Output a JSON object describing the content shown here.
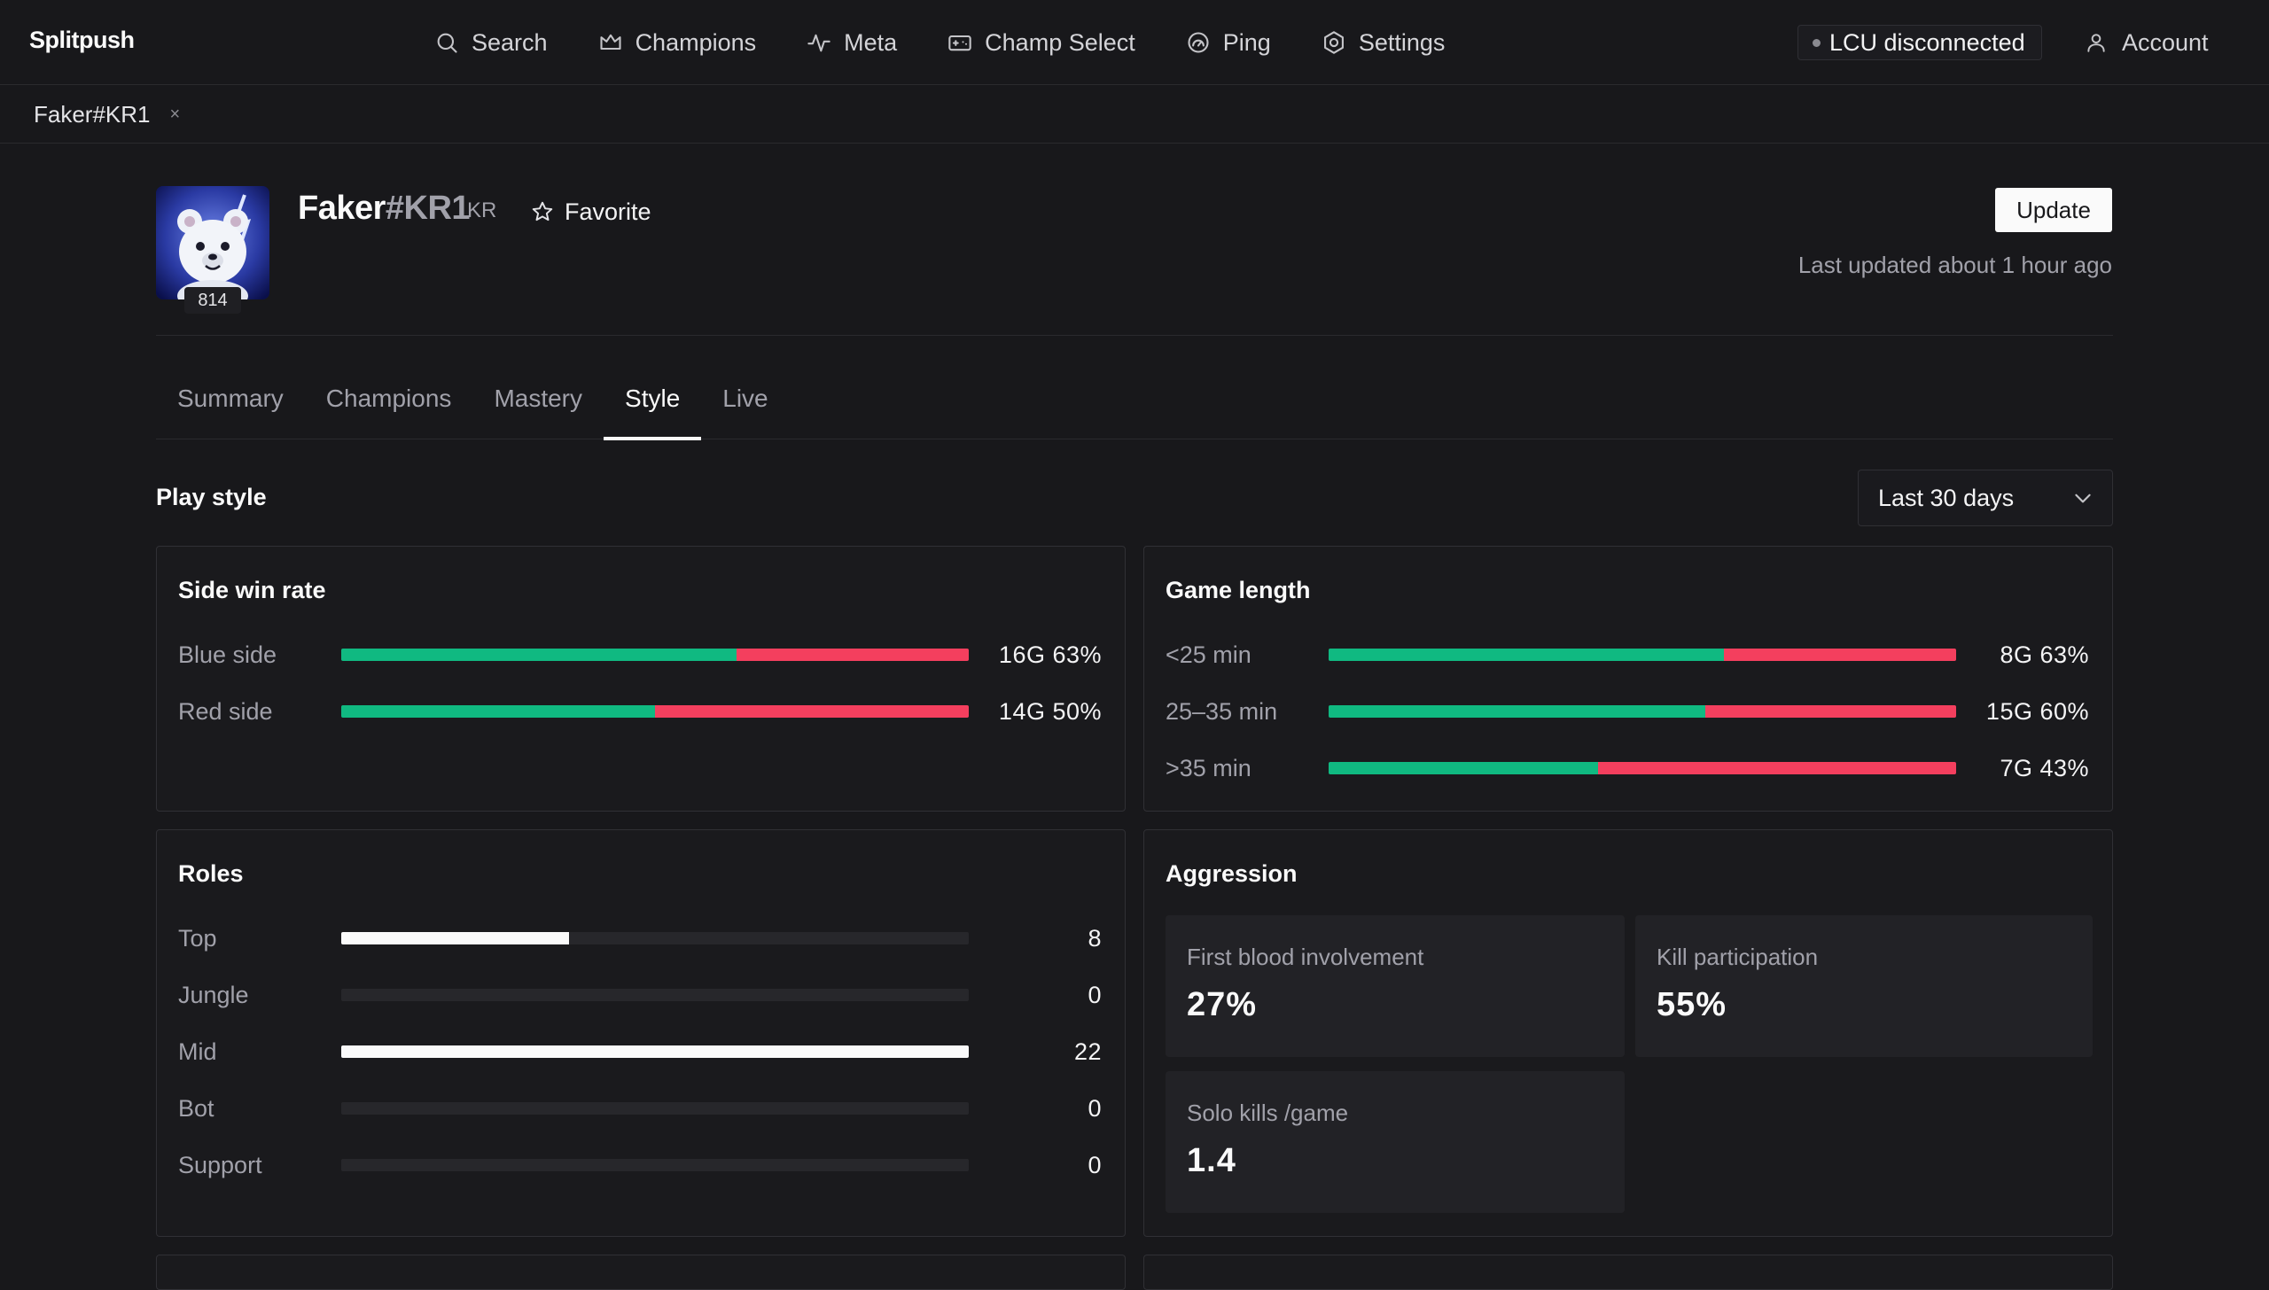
{
  "app": {
    "brand": "Splitpush"
  },
  "nav": {
    "items": [
      {
        "label": "Search",
        "icon": "search-icon"
      },
      {
        "label": "Champions",
        "icon": "crown-icon"
      },
      {
        "label": "Meta",
        "icon": "activity-icon"
      },
      {
        "label": "Champ Select",
        "icon": "gamepad-icon"
      },
      {
        "label": "Ping",
        "icon": "gauge-icon"
      },
      {
        "label": "Settings",
        "icon": "gear-icon"
      }
    ],
    "lcu_status": "LCU disconnected",
    "account_label": "Account"
  },
  "open_tab": {
    "label": "Faker#KR1",
    "close": "×"
  },
  "profile": {
    "name": "Faker",
    "tag": "#KR1",
    "region": "KR",
    "level": "814",
    "favorite_label": "Favorite",
    "update_label": "Update",
    "last_updated": "Last updated about 1 hour ago"
  },
  "profile_tabs": [
    {
      "label": "Summary",
      "active": false
    },
    {
      "label": "Champions",
      "active": false
    },
    {
      "label": "Mastery",
      "active": false
    },
    {
      "label": "Style",
      "active": true
    },
    {
      "label": "Live",
      "active": false
    }
  ],
  "section": {
    "title": "Play style",
    "range": "Last 30 days"
  },
  "side_win_rate": {
    "title": "Side win rate",
    "rows": [
      {
        "label": "Blue side",
        "value": "16G 63%",
        "winrate": 0.63
      },
      {
        "label": "Red side",
        "value": "14G 50%",
        "winrate": 0.5
      }
    ]
  },
  "game_length": {
    "title": "Game length",
    "rows": [
      {
        "label": "<25 min",
        "value": "8G 63%",
        "winrate": 0.63
      },
      {
        "label": "25–35 min",
        "value": "15G 60%",
        "winrate": 0.6
      },
      {
        "label": ">35 min",
        "value": "7G 43%",
        "winrate": 0.43
      }
    ]
  },
  "roles": {
    "title": "Roles",
    "max": 22,
    "rows": [
      {
        "label": "Top",
        "value": "8",
        "count": 8
      },
      {
        "label": "Jungle",
        "value": "0",
        "count": 0
      },
      {
        "label": "Mid",
        "value": "22",
        "count": 22
      },
      {
        "label": "Bot",
        "value": "0",
        "count": 0
      },
      {
        "label": "Support",
        "value": "0",
        "count": 0
      }
    ]
  },
  "aggression": {
    "title": "Aggression",
    "stats": [
      {
        "label": "First blood involvement",
        "value": "27%"
      },
      {
        "label": "Kill participation",
        "value": "55%"
      },
      {
        "label": "Solo kills /game",
        "value": "1.4"
      }
    ]
  },
  "colors": {
    "win": "#10b981",
    "loss": "#f43f5e",
    "background": "#18181b"
  }
}
